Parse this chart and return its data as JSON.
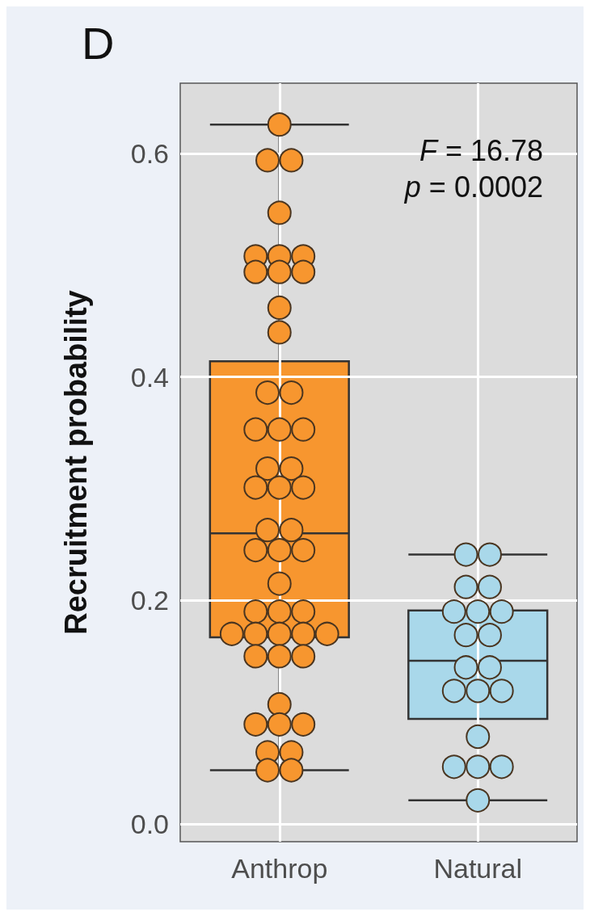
{
  "chart_data": {
    "type": "box",
    "title": "D",
    "ylabel": "Recruitment probability",
    "categories": [
      "Anthrop",
      "Natural"
    ],
    "colors": [
      "#f7962f",
      "#a9d8ea"
    ],
    "boxes": [
      {
        "low": 0.048,
        "q1": 0.167,
        "median": 0.26,
        "q3": 0.414,
        "high": 0.626
      },
      {
        "low": 0.021,
        "q1": 0.094,
        "median": 0.146,
        "q3": 0.191,
        "high": 0.241
      }
    ],
    "series": [
      {
        "type": "scatter",
        "color": "#f7962f",
        "x": [
          "Anthrop",
          "Anthrop",
          "Anthrop",
          "Anthrop",
          "Anthrop",
          "Anthrop",
          "Anthrop",
          "Anthrop",
          "Anthrop",
          "Anthrop",
          "Anthrop",
          "Anthrop",
          "Anthrop",
          "Anthrop",
          "Anthrop",
          "Anthrop",
          "Anthrop",
          "Anthrop",
          "Anthrop",
          "Anthrop",
          "Anthrop",
          "Anthrop",
          "Anthrop",
          "Anthrop",
          "Anthrop",
          "Anthrop",
          "Anthrop",
          "Anthrop",
          "Anthrop",
          "Anthrop",
          "Anthrop",
          "Anthrop",
          "Anthrop",
          "Anthrop",
          "Anthrop",
          "Anthrop",
          "Anthrop",
          "Anthrop",
          "Anthrop",
          "Anthrop",
          "Anthrop",
          "Anthrop",
          "Anthrop",
          "Anthrop",
          "Anthrop",
          "Anthrop",
          "Anthrop"
        ],
        "values": [
          0.626,
          0.594,
          0.594,
          0.547,
          0.508,
          0.508,
          0.508,
          0.494,
          0.494,
          0.494,
          0.462,
          0.44,
          0.386,
          0.386,
          0.353,
          0.353,
          0.353,
          0.318,
          0.318,
          0.301,
          0.301,
          0.301,
          0.263,
          0.263,
          0.245,
          0.245,
          0.245,
          0.215,
          0.19,
          0.19,
          0.19,
          0.17,
          0.17,
          0.17,
          0.17,
          0.17,
          0.15,
          0.15,
          0.15,
          0.107,
          0.089,
          0.089,
          0.089,
          0.064,
          0.064,
          0.048,
          0.048
        ]
      },
      {
        "type": "scatter",
        "color": "#a9d8ea",
        "x": [
          "Natural",
          "Natural",
          "Natural",
          "Natural",
          "Natural",
          "Natural",
          "Natural",
          "Natural",
          "Natural",
          "Natural",
          "Natural",
          "Natural",
          "Natural",
          "Natural",
          "Natural",
          "Natural",
          "Natural",
          "Natural",
          "Natural"
        ],
        "values": [
          0.241,
          0.241,
          0.212,
          0.212,
          0.19,
          0.19,
          0.19,
          0.169,
          0.169,
          0.14,
          0.14,
          0.119,
          0.119,
          0.119,
          0.078,
          0.051,
          0.051,
          0.051,
          0.021
        ]
      }
    ],
    "ylim": [
      -0.016,
      0.663
    ],
    "yticks": [
      {
        "value": 0,
        "label": "0.0"
      },
      {
        "value": 0.2,
        "label": "0.2"
      },
      {
        "value": 0.4,
        "label": "0.4"
      },
      {
        "value": 0.6,
        "label": "0.6"
      }
    ],
    "grid": true,
    "marker": "circle",
    "annotations": [
      "F = 16.78",
      "p = 0.0002"
    ]
  }
}
